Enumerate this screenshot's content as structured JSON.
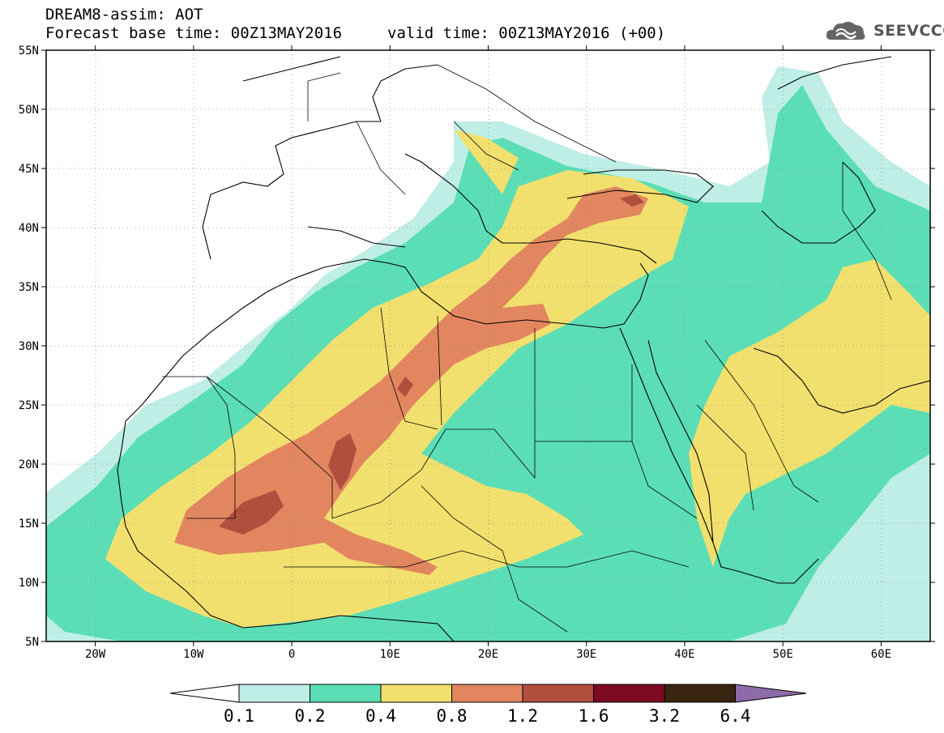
{
  "header": {
    "title_line1": "DREAM8-assim: AOT",
    "title_line2": "Forecast base time: 00Z13MAY2016",
    "valid_time": "valid time: 00Z13MAY2016 (+00)",
    "logo_text": "SEEVCCC"
  },
  "map": {
    "lon_range": [
      -25,
      65
    ],
    "lat_range": [
      5,
      55
    ],
    "lat_ticks": [
      "5N",
      "10N",
      "15N",
      "20N",
      "25N",
      "30N",
      "35N",
      "40N",
      "45N",
      "50N",
      "55N"
    ],
    "lon_ticks": [
      "20W",
      "10W",
      "0",
      "10E",
      "20E",
      "30E",
      "40E",
      "50E",
      "60E"
    ],
    "grid": "dotted"
  },
  "colorbar": {
    "labels": [
      "0.1",
      "0.2",
      "0.4",
      "0.8",
      "1.2",
      "1.6",
      "3.2",
      "6.4"
    ],
    "colors": [
      "#ffffff",
      "#bfeee6",
      "#5bdeb6",
      "#f2e06e",
      "#e2865f",
      "#b04f3e",
      "#7c0a23",
      "#3a2412",
      "#8c6ba8"
    ]
  }
}
